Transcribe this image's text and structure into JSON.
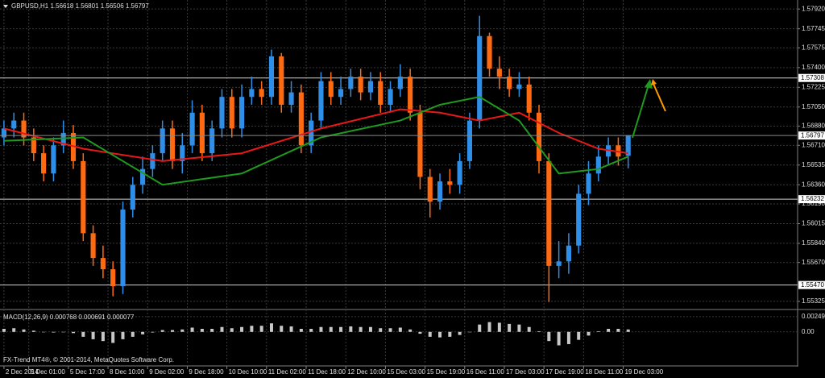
{
  "chart_data": {
    "type": "candlestick",
    "title": "GBPUSD,H1  1.56618 1.56801 1.56506 1.56797",
    "footer": "FX-Trend MT4®, © 2001-2014, MetaQuotes Software Corp.",
    "grid": true,
    "up_color": "#2f8fe8",
    "down_color": "#ff6a10",
    "xlim": [
      -0.4,
      80.1
    ],
    "ylim": [
      1.5526,
      1.58
    ],
    "yticks": [
      {
        "value": 1.5792,
        "label": "1.57920"
      },
      1.57745,
      1.57575,
      {
        "value": 1.574,
        "label": "1.57400"
      },
      1.57225,
      {
        "value": 1.5705,
        "label": "1.57050"
      },
      {
        "value": 1.5688,
        "label": "1.56880"
      },
      {
        "value": 1.5671,
        "label": "1.56710"
      },
      1.56535,
      {
        "value": 1.5636,
        "label": "1.56360"
      },
      {
        "value": 1.5619,
        "label": "1.56190"
      },
      1.56015,
      {
        "value": 1.5584,
        "label": "1.55840"
      },
      {
        "value": 1.5567,
        "label": "1.55670"
      },
      1.55325
    ],
    "xticks": [
      {
        "value": 0,
        "label": "2 Dec 2014"
      },
      {
        "value": 2.5,
        "label": "5 Dec 01:00"
      },
      {
        "value": 6.5,
        "label": "5 Dec 17:00"
      },
      {
        "value": 10.5,
        "label": "8 Dec 10:00"
      },
      {
        "value": 14.5,
        "label": "9 Dec 02:00"
      },
      {
        "value": 18.5,
        "label": "9 Dec 18:00"
      },
      {
        "value": 22.5,
        "label": "10 Dec 10:00"
      },
      {
        "value": 26.5,
        "label": "11 Dec 02:00"
      },
      {
        "value": 30.5,
        "label": "11 Dec 18:00"
      },
      {
        "value": 34.5,
        "label": "12 Dec 10:00"
      },
      {
        "value": 38.5,
        "label": "15 Dec 03:00"
      },
      {
        "value": 42.5,
        "label": "15 Dec 19:00"
      },
      {
        "value": 46.5,
        "label": "16 Dec 11:00"
      },
      {
        "value": 50.5,
        "label": "17 Dec 03:00"
      },
      {
        "value": 54.5,
        "label": "17 Dec 19:00"
      },
      {
        "value": 58.5,
        "label": "18 Dec 11:00"
      },
      {
        "value": 62.5,
        "label": "19 Dec 03:00"
      }
    ],
    "hlines": [
      1.57308,
      1.56232,
      {
        "value": 1.5547,
        "label": "1.55470"
      }
    ],
    "candles": [
      [
        1.5678,
        1.5693,
        1.5671,
        1.5686
      ],
      [
        1.5686,
        1.57,
        1.5678,
        1.5693
      ],
      [
        1.5693,
        1.57,
        1.5671,
        1.5678
      ],
      [
        1.5678,
        1.5686,
        1.5657,
        1.5664
      ],
      [
        1.5664,
        1.5671,
        1.5639,
        1.5646
      ],
      [
        1.5646,
        1.5678,
        1.5639,
        1.5671
      ],
      [
        1.5671,
        1.5693,
        1.5664,
        1.5682
      ],
      [
        1.5682,
        1.5689,
        1.565,
        1.5657
      ],
      [
        1.5657,
        1.5664,
        1.5586,
        1.5593
      ],
      [
        1.5593,
        1.56,
        1.5564,
        1.5571
      ],
      [
        1.5571,
        1.5582,
        1.5553,
        1.5561
      ],
      [
        1.5561,
        1.5568,
        1.5537,
        1.5546
      ],
      [
        1.5546,
        1.5621,
        1.5539,
        1.5614
      ],
      [
        1.5614,
        1.5643,
        1.5607,
        1.5636
      ],
      [
        1.5636,
        1.5661,
        1.5628,
        1.565
      ],
      [
        1.565,
        1.5671,
        1.5643,
        1.5664
      ],
      [
        1.5664,
        1.5693,
        1.5657,
        1.5686
      ],
      [
        1.5686,
        1.5693,
        1.565,
        1.5657
      ],
      [
        1.5657,
        1.5682,
        1.5646,
        1.5671
      ],
      [
        1.5671,
        1.5711,
        1.5664,
        1.57
      ],
      [
        1.57,
        1.5707,
        1.5657,
        1.5664
      ],
      [
        1.5664,
        1.5693,
        1.5657,
        1.5686
      ],
      [
        1.5686,
        1.5721,
        1.5678,
        1.5714
      ],
      [
        1.5714,
        1.5721,
        1.5678,
        1.5686
      ],
      [
        1.5686,
        1.5725,
        1.5678,
        1.5714
      ],
      [
        1.5714,
        1.5732,
        1.5707,
        1.5721
      ],
      [
        1.5721,
        1.5728,
        1.5707,
        1.5714
      ],
      [
        1.5714,
        1.5756,
        1.5707,
        1.575
      ],
      [
        1.575,
        1.5753,
        1.57,
        1.5707
      ],
      [
        1.5707,
        1.5728,
        1.57,
        1.5718
      ],
      [
        1.5718,
        1.5725,
        1.5664,
        1.5671
      ],
      [
        1.5671,
        1.57,
        1.5664,
        1.5693
      ],
      [
        1.5693,
        1.5736,
        1.5686,
        1.5728
      ],
      [
        1.5728,
        1.5736,
        1.5707,
        1.5714
      ],
      [
        1.5714,
        1.5732,
        1.5707,
        1.5721
      ],
      [
        1.5721,
        1.5739,
        1.5714,
        1.5732
      ],
      [
        1.5732,
        1.5739,
        1.5711,
        1.5718
      ],
      [
        1.5718,
        1.5736,
        1.5711,
        1.5728
      ],
      [
        1.5728,
        1.5736,
        1.57,
        1.5707
      ],
      [
        1.5707,
        1.5728,
        1.57,
        1.5721
      ],
      [
        1.5721,
        1.5743,
        1.5714,
        1.5732
      ],
      [
        1.5732,
        1.5739,
        1.5693,
        1.57
      ],
      [
        1.57,
        1.5707,
        1.5632,
        1.5643
      ],
      [
        1.5643,
        1.565,
        1.5607,
        1.5621
      ],
      [
        1.5621,
        1.5646,
        1.5614,
        1.5639
      ],
      [
        1.5639,
        1.565,
        1.5628,
        1.5636
      ],
      [
        1.5636,
        1.5664,
        1.5628,
        1.5657
      ],
      [
        1.5657,
        1.57,
        1.565,
        1.5693
      ],
      [
        1.5693,
        1.5786,
        1.5686,
        1.5768
      ],
      [
        1.5768,
        1.5771,
        1.5732,
        1.5739
      ],
      [
        1.5739,
        1.575,
        1.5721,
        1.5732
      ],
      [
        1.5732,
        1.5739,
        1.5714,
        1.5721
      ],
      [
        1.5721,
        1.5736,
        1.5714,
        1.5725
      ],
      [
        1.5725,
        1.5732,
        1.5693,
        1.57
      ],
      [
        1.57,
        1.5707,
        1.5646,
        1.5657
      ],
      [
        1.5657,
        1.5664,
        1.5532,
        1.5564
      ],
      [
        1.5564,
        1.5586,
        1.5553,
        1.5568
      ],
      [
        1.5568,
        1.5593,
        1.5557,
        1.5582
      ],
      [
        1.5582,
        1.5636,
        1.5575,
        1.5628
      ],
      [
        1.5628,
        1.5657,
        1.5618,
        1.5646
      ],
      [
        1.5646,
        1.5671,
        1.5639,
        1.5661
      ],
      [
        1.5661,
        1.5678,
        1.5653,
        1.5671
      ],
      [
        1.5671,
        1.5678,
        1.5653,
        1.5661
      ],
      [
        1.56618,
        1.56801,
        1.56506,
        1.56797
      ]
    ],
    "lines": [
      {
        "color": "#e81818",
        "x": [
          0,
          8,
          16,
          24,
          32,
          40,
          44,
          48,
          52,
          56,
          60,
          63
        ],
        "values": [
          1.5686,
          1.5668,
          1.5657,
          1.5664,
          1.5686,
          1.5703,
          1.57,
          1.5693,
          1.57,
          1.5682,
          1.5668,
          1.5664
        ]
      },
      {
        "color": "#1f9a1f",
        "x": [
          0,
          8,
          16,
          24,
          32,
          40,
          44,
          48,
          52,
          56,
          60,
          63
        ],
        "values": [
          1.5675,
          1.5678,
          1.5636,
          1.5646,
          1.5678,
          1.5693,
          1.5707,
          1.5714,
          1.5693,
          1.5646,
          1.565,
          1.5661
        ]
      }
    ],
    "macd": {
      "title": "MACD(12,26,9) 0.000768 0.000691 0.000077",
      "color": "#c8c8c8",
      "ylim": [
        -0.0053,
        0.0034
      ],
      "yticks": [
        0.002492,
        {
          "value": 0,
          "label": "0.00"
        }
      ],
      "values": [
        0.0005,
        0.0006,
        0.0004,
        0.0002,
        0,
        -0.0001,
        0,
        -0.0002,
        -0.0008,
        -0.0012,
        -0.0015,
        -0.0018,
        -0.0012,
        -0.0008,
        -0.0004,
        -0.0001,
        0.0003,
        0.0003,
        0.0004,
        0.0007,
        0.0005,
        0.0005,
        0.0008,
        0.0006,
        0.0008,
        0.001,
        0.001,
        0.0014,
        0.001,
        0.0009,
        0.0005,
        0.0005,
        0.0008,
        0.0008,
        0.0008,
        0.0009,
        0.0008,
        0.0008,
        0.0006,
        0.0006,
        0.0007,
        0.0004,
        -0.0003,
        -0.0008,
        -0.0009,
        -0.0008,
        -0.0005,
        0,
        0.0012,
        0.0016,
        0.0015,
        0.0013,
        0.0012,
        0.0008,
        0.0001,
        -0.0015,
        -0.0022,
        -0.002,
        -0.0013,
        -0.0006,
        0.0001,
        0.0005,
        0.0005,
        0.0004
      ]
    }
  }
}
